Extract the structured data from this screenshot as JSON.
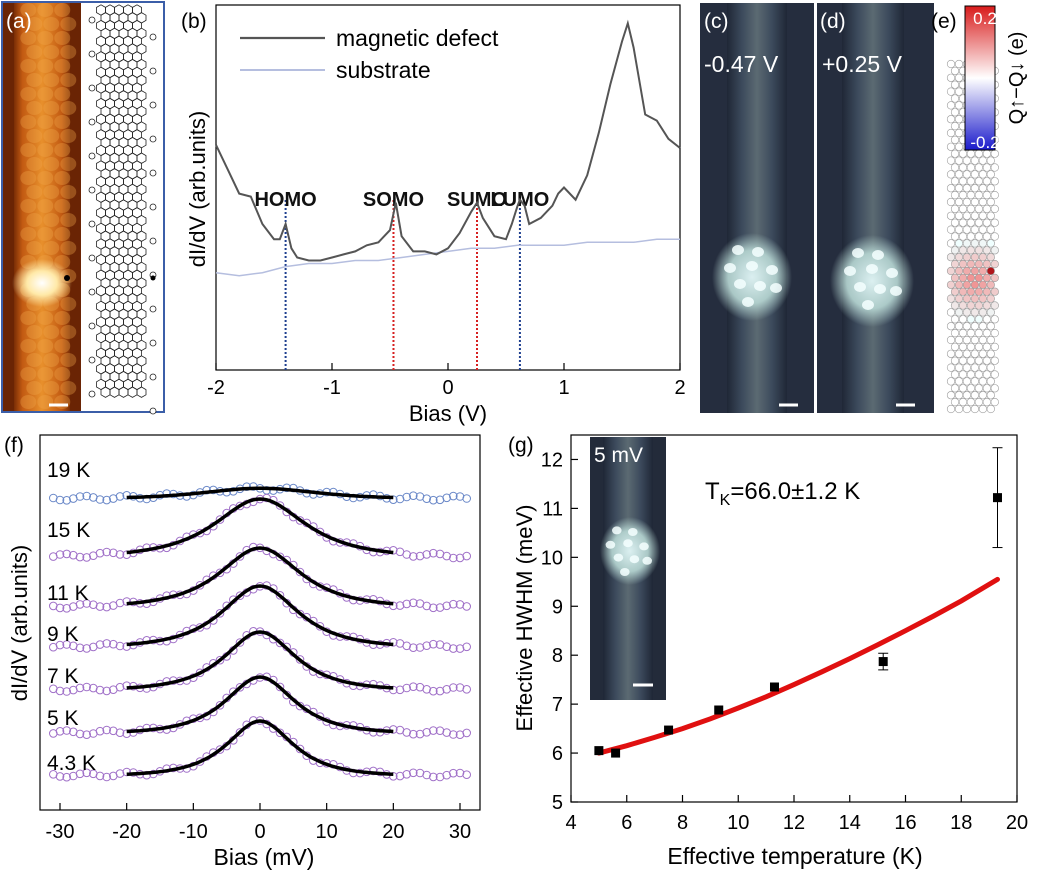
{
  "panels": {
    "a": {
      "label": "(a)"
    },
    "b": {
      "label": "(b)"
    },
    "c": {
      "label": "(c)",
      "bias_text": "-0.47 V"
    },
    "d": {
      "label": "(d)",
      "bias_text": "+0.25 V"
    },
    "e": {
      "label": "(e)"
    },
    "f": {
      "label": "(f)"
    },
    "g": {
      "label": "(g)",
      "inset_text": "5 mV"
    }
  },
  "colors": {
    "defect_line": "#555555",
    "substrate_line": "#b5bedf",
    "homo_lumo_marker": "#1f3f8f",
    "somo_sumo_marker": "#d62020",
    "spectra_circles_blue": "#6a88c8",
    "spectra_circles_purple": "#a070c8",
    "fit_black": "#000000",
    "tk_fit_red": "#e01010",
    "colorbar_positive": "#d81b1b",
    "colorbar_negative": "#1a1acb",
    "stm_bg": "#2a3347",
    "frame_blue": "#3b5ea8"
  },
  "chart_data": [
    {
      "id": "b",
      "type": "line",
      "xlabel": "Bias (V)",
      "ylabel": "dI/dV (arb.units)",
      "xlim": [
        -2,
        2
      ],
      "xticks": [
        -2,
        -1,
        0,
        1,
        2
      ],
      "yticks_shown": false,
      "legend_position": "top-left",
      "series": [
        {
          "name": "magnetic defect",
          "x": [
            -2.0,
            -1.9,
            -1.8,
            -1.7,
            -1.6,
            -1.5,
            -1.45,
            -1.4,
            -1.35,
            -1.3,
            -1.2,
            -1.1,
            -1.0,
            -0.9,
            -0.8,
            -0.7,
            -0.6,
            -0.5,
            -0.45,
            -0.4,
            -0.3,
            -0.2,
            -0.1,
            0.0,
            0.1,
            0.2,
            0.25,
            0.3,
            0.4,
            0.5,
            0.55,
            0.6,
            0.62,
            0.66,
            0.7,
            0.8,
            0.9,
            0.95,
            1.0,
            1.1,
            1.2,
            1.3,
            1.4,
            1.5,
            1.55,
            1.6,
            1.7,
            1.8,
            1.9,
            2.0
          ],
          "y": [
            0.74,
            0.66,
            0.58,
            0.57,
            0.48,
            0.43,
            0.43,
            0.48,
            0.4,
            0.37,
            0.36,
            0.36,
            0.37,
            0.38,
            0.39,
            0.41,
            0.42,
            0.46,
            0.55,
            0.44,
            0.39,
            0.39,
            0.38,
            0.4,
            0.45,
            0.52,
            0.55,
            0.5,
            0.44,
            0.43,
            0.48,
            0.54,
            0.56,
            0.54,
            0.48,
            0.5,
            0.54,
            0.58,
            0.6,
            0.56,
            0.64,
            0.78,
            0.94,
            1.08,
            1.14,
            1.06,
            0.84,
            0.82,
            0.76,
            0.73
          ]
        },
        {
          "name": "substrate",
          "x": [
            -2.0,
            -1.8,
            -1.6,
            -1.4,
            -1.2,
            -1.0,
            -0.8,
            -0.6,
            -0.4,
            -0.2,
            0.0,
            0.2,
            0.4,
            0.6,
            0.8,
            1.0,
            1.2,
            1.4,
            1.6,
            1.8,
            2.0
          ],
          "y": [
            0.32,
            0.31,
            0.32,
            0.34,
            0.35,
            0.35,
            0.36,
            0.36,
            0.37,
            0.38,
            0.39,
            0.4,
            0.4,
            0.41,
            0.41,
            0.41,
            0.42,
            0.42,
            0.42,
            0.43,
            0.43
          ]
        }
      ],
      "markers": [
        {
          "label": "HOMO",
          "x": -1.4,
          "color_key": "homo_lumo_marker"
        },
        {
          "label": "SOMO",
          "x": -0.47,
          "color_key": "somo_sumo_marker"
        },
        {
          "label": "SUMO",
          "x": 0.25,
          "color_key": "somo_sumo_marker"
        },
        {
          "label": "LUMO",
          "x": 0.62,
          "color_key": "homo_lumo_marker"
        }
      ]
    },
    {
      "id": "e",
      "type": "heatmap",
      "colorbar_label": "Q↑−Q↓ (e)",
      "colorbar_ticks": [
        "0.2",
        "-0.2"
      ],
      "colorbar_range": [
        -0.2,
        0.2
      ]
    },
    {
      "id": "f",
      "type": "line",
      "xlabel": "Bias (mV)",
      "ylabel": "dI/dV (arb.units)",
      "xlim": [
        -33,
        33
      ],
      "xticks": [
        -30,
        -20,
        -10,
        0,
        10,
        20,
        30
      ],
      "yticks_shown": false,
      "fit_range_mV": [
        -20,
        20
      ],
      "series": [
        {
          "name": "19 K",
          "label": "19 K",
          "width_mV": 14,
          "amplitude": 0.45,
          "baseline": 0.0,
          "style": "blue"
        },
        {
          "name": "15 K",
          "label": "15 K",
          "width_mV": 9,
          "amplitude": 1.0,
          "baseline": 0.0,
          "style": "purple"
        },
        {
          "name": "11 K",
          "label": "11 K",
          "width_mV": 8,
          "amplitude": 1.0,
          "baseline": 0.0,
          "style": "purple"
        },
        {
          "name": "9 K",
          "label": "9 K",
          "width_mV": 7.5,
          "amplitude": 1.0,
          "baseline": 0.0,
          "style": "purple"
        },
        {
          "name": "7 K",
          "label": "7 K",
          "width_mV": 7,
          "amplitude": 1.0,
          "baseline": 0.0,
          "style": "purple"
        },
        {
          "name": "5 K",
          "label": "5 K",
          "width_mV": 6.8,
          "amplitude": 1.0,
          "baseline": 0.0,
          "style": "purple"
        },
        {
          "name": "4.3 K",
          "label": "4.3 K",
          "width_mV": 6.5,
          "amplitude": 1.0,
          "baseline": 0.0,
          "style": "purple"
        }
      ]
    },
    {
      "id": "g",
      "type": "scatter",
      "xlabel": "Effective temperature (K)",
      "ylabel": "Effective HWHM (meV)",
      "xlim": [
        4,
        20
      ],
      "ylim": [
        5,
        12.5
      ],
      "xticks": [
        4,
        6,
        8,
        10,
        12,
        14,
        16,
        18,
        20
      ],
      "yticks": [
        5,
        6,
        7,
        8,
        9,
        10,
        11,
        12
      ],
      "annotation": "66.0±1.2 K",
      "annotation_prefix": "T",
      "annotation_sub": "K",
      "annotation_eq": "=",
      "points": [
        {
          "x": 5.0,
          "y": 6.05,
          "err": 0.05
        },
        {
          "x": 5.6,
          "y": 6.0,
          "err": 0.05
        },
        {
          "x": 7.5,
          "y": 6.47,
          "err": 0.05
        },
        {
          "x": 9.3,
          "y": 6.88,
          "err": 0.05
        },
        {
          "x": 11.3,
          "y": 7.35,
          "err": 0.05
        },
        {
          "x": 15.2,
          "y": 7.87,
          "err": 0.17
        },
        {
          "x": 19.3,
          "y": 11.22,
          "err": 1.02
        }
      ],
      "fit": {
        "x": [
          5,
          6,
          7,
          8,
          9,
          10,
          11,
          12,
          13,
          14,
          15,
          16,
          17,
          18,
          19.3
        ],
        "y": [
          6.0,
          6.15,
          6.32,
          6.5,
          6.7,
          6.92,
          7.15,
          7.4,
          7.66,
          7.93,
          8.21,
          8.5,
          8.8,
          9.11,
          9.55
        ]
      }
    }
  ]
}
